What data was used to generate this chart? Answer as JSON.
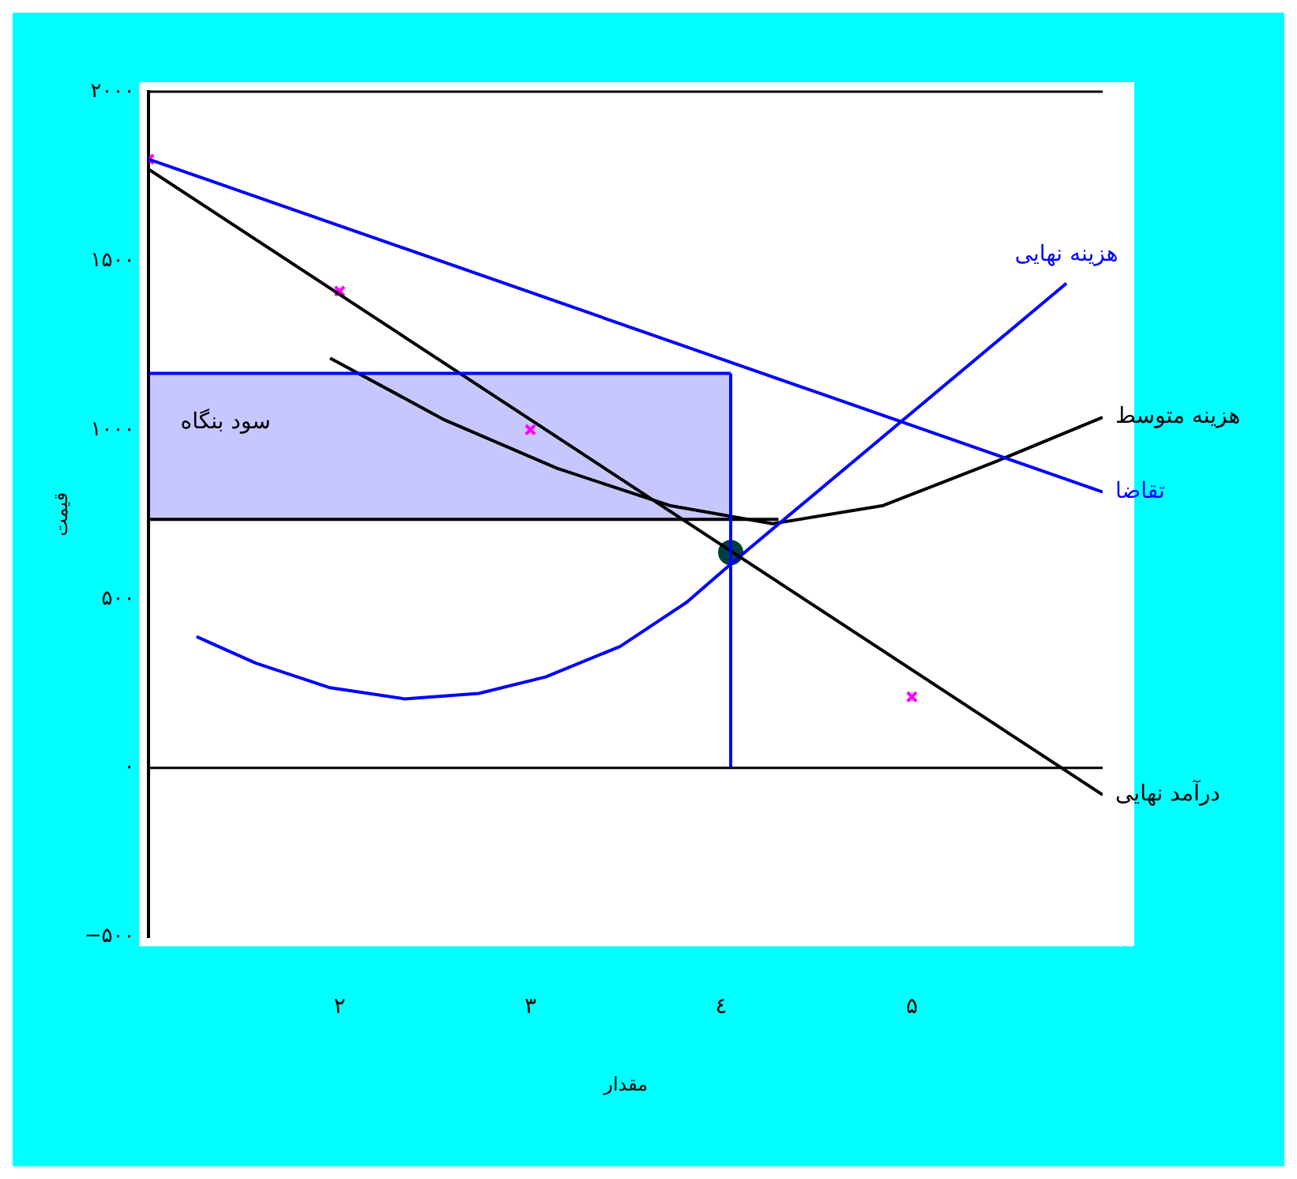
{
  "chart_data": {
    "type": "line",
    "xlabel": "مقدار",
    "ylabel": "قیمت",
    "xlim": [
      1,
      6
    ],
    "ylim": [
      -500,
      2000
    ],
    "xticks": [
      {
        "value": 2,
        "label": "۲"
      },
      {
        "value": 3,
        "label": "۳"
      },
      {
        "value": 4,
        "label": "٤"
      },
      {
        "value": 5,
        "label": "۵"
      }
    ],
    "yticks": [
      {
        "value": -500,
        "label": "−۵۰۰"
      },
      {
        "value": 0,
        "label": "۰"
      },
      {
        "value": 500,
        "label": "۵۰۰"
      },
      {
        "value": 1000,
        "label": "۱۰۰۰"
      },
      {
        "value": 1500,
        "label": "۱۵۰۰"
      },
      {
        "value": 2000,
        "label": "۲۰۰۰"
      }
    ],
    "grid": false,
    "legend": false,
    "marker": "none",
    "line_style": "solid",
    "series": [
      {
        "type": "line",
        "color": "#0000ff",
        "x": [
          1,
          4.05
        ],
        "values": [
          1167,
          1167
        ],
        "lower": [
          735,
          735
        ],
        "upper": [
          1167,
          1167
        ]
      },
      {
        "type": "line",
        "color": "#0000ff",
        "x": [
          4.05,
          4.05
        ],
        "values": [
          0,
          1167
        ]
      },
      {
        "type": "line",
        "color": "#000000",
        "x": [
          1,
          4.3
        ],
        "values": [
          735,
          735
        ]
      },
      {
        "type": "line",
        "name": "تقاضا",
        "color": "#0000ff",
        "x": [
          1,
          6
        ],
        "values": [
          1800,
          816
        ]
      },
      {
        "type": "line",
        "name": "درآمد نهایی",
        "color": "#000000",
        "x": [
          1,
          6
        ],
        "values": [
          1770,
          -80
        ]
      },
      {
        "type": "line",
        "name": "هزینه نهایی",
        "color": "#0000ff",
        "x": [
          1.25,
          1.56,
          1.95,
          2.34,
          2.73,
          3.08,
          3.47,
          3.82,
          4.07,
          5.81
        ],
        "values": [
          388,
          310,
          237,
          204,
          220,
          269,
          359,
          490,
          612,
          1433
        ]
      },
      {
        "type": "line",
        "name": "هزینه متوسط",
        "color": "#000000",
        "x": [
          1.95,
          2.55,
          3.14,
          3.73,
          4.27,
          4.85,
          5.44,
          6.0
        ],
        "values": [
          1212,
          1029,
          886,
          776,
          722,
          776,
          906,
          1037
        ]
      },
      {
        "type": "scatter",
        "color": "#ff00ff",
        "marker": "cross",
        "x": [
          1,
          2,
          3,
          5
        ],
        "values": [
          1800,
          1410,
          1000,
          210
        ]
      },
      {
        "type": "scatter",
        "color": "#004040",
        "marker": "circle",
        "x": [
          4.05
        ],
        "values": [
          637
        ]
      }
    ],
    "annotations": [
      "سود بنگاه"
    ]
  }
}
